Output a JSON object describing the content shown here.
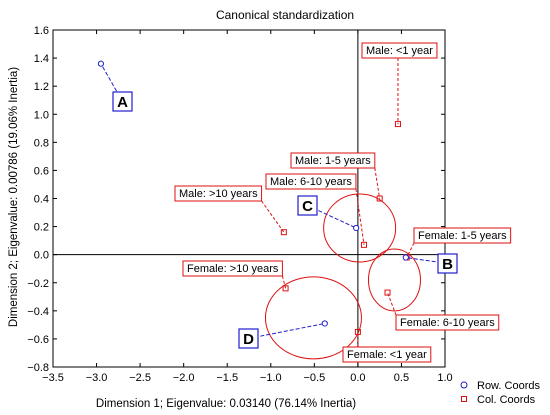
{
  "chart_data": {
    "type": "scatter",
    "title": "Canonical standardization",
    "xlabel": "Dimension 1; Eigenvalue: 0.03140 (76.14% Inertia)",
    "ylabel": "Dimension 2; Eigenvalue: 0.00786 (19.06% Inertia)",
    "xlim": [
      -3.5,
      1.0
    ],
    "ylim": [
      -0.8,
      1.6
    ],
    "x_ticks": [
      -3.5,
      -3.0,
      -2.5,
      -2.0,
      -1.5,
      -1.0,
      -0.5,
      0.0,
      0.5,
      1.0
    ],
    "y_ticks": [
      -0.8,
      -0.6,
      -0.4,
      -0.2,
      0.0,
      0.2,
      0.4,
      0.6,
      0.8,
      1.0,
      1.2,
      1.4,
      1.6
    ],
    "x_tick_labels": [
      "−3.5",
      "−3.0",
      "−2.5",
      "−2.0",
      "−1.5",
      "−1.0",
      "−0.5",
      "0.0",
      "0.5",
      "1.0"
    ],
    "y_tick_labels": [
      "−0.8",
      "−0.6",
      "−0.4",
      "−0.2",
      "0.0",
      "0.2",
      "0.4",
      "0.6",
      "0.8",
      "1.0",
      "1.2",
      "1.4",
      "1.6"
    ],
    "series": [
      {
        "name": "Row. Coords",
        "color": "#1f1fcc",
        "marker": "circle",
        "points": [
          {
            "label": "A",
            "x": -2.95,
            "y": 1.36
          },
          {
            "label": "B",
            "x": 0.55,
            "y": -0.02
          },
          {
            "label": "C",
            "x": -0.02,
            "y": 0.19
          },
          {
            "label": "D",
            "x": -0.38,
            "y": -0.49
          }
        ]
      },
      {
        "name": "Col. Coords",
        "color": "#dd1111",
        "marker": "square",
        "points": [
          {
            "label": "Male: <1 year",
            "x": 0.46,
            "y": 0.93
          },
          {
            "label": "Male: 1-5 years",
            "x": 0.25,
            "y": 0.4
          },
          {
            "label": "Male: 6-10 years",
            "x": 0.07,
            "y": 0.07
          },
          {
            "label": "Male: >10 years",
            "x": -0.85,
            "y": 0.16
          },
          {
            "label": "Female: 1-5 years",
            "x": 0.56,
            "y": -0.02
          },
          {
            "label": "Female: 6-10 years",
            "x": 0.34,
            "y": -0.27
          },
          {
            "label": "Female: >10 years",
            "x": -0.83,
            "y": -0.24
          },
          {
            "label": "Female: <1 year",
            "x": 0.0,
            "y": -0.55
          }
        ]
      }
    ],
    "legend": {
      "position": "bottom-right",
      "entries": [
        "Row. Coords",
        "Col. Coords"
      ]
    }
  }
}
